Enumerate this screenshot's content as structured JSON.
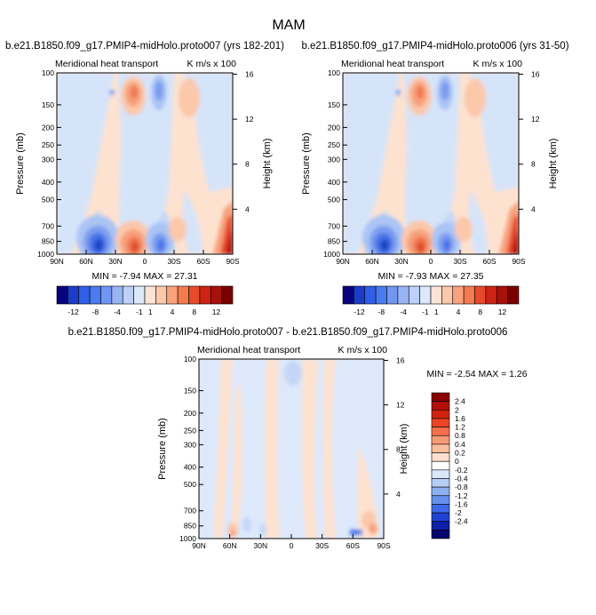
{
  "page": {
    "title": "MAM"
  },
  "panels": [
    {
      "title": "b.e21.B1850.f09_g17.PMIP4-midHolo.proto007 (yrs 182-201)",
      "left_label": "Meridional heat transport",
      "right_label": "K m/s x 100",
      "minmax": "MIN = -7.94   MAX = 27.31"
    },
    {
      "title": "b.e21.B1850.f09_g17.PMIP4-midHolo.proto006 (yrs 31-50)",
      "left_label": "Meridional heat transport",
      "right_label": "K m/s x 100",
      "minmax": "MIN = -7.93   MAX = 27.35"
    },
    {
      "title": "b.e21.B1850.f09_g17.PMIP4-midHolo.proto007 - b.e21.B1850.f09_g17.PMIP4-midHolo.proto006",
      "left_label": "Meridional heat transport",
      "right_label": "K m/s x 100",
      "minmax": "MIN =  -2.54  MAX =   1.26"
    }
  ],
  "colorbar_top": {
    "labels": [
      "-12",
      "-8",
      "-4",
      "-1",
      "1",
      "4",
      "8",
      "12"
    ],
    "colors": [
      "#08047b",
      "#1c3cc8",
      "#2f5fe6",
      "#4a7bf0",
      "#7196f2",
      "#98b4f4",
      "#bcd0f8",
      "#dde8fb",
      "#fbe4d5",
      "#fbc8aa",
      "#f9a37e",
      "#f47a50",
      "#e64a2a",
      "#cc2314",
      "#a8100a",
      "#7a0000"
    ]
  },
  "colorbar_bottom": {
    "labels": [
      "2.4",
      "2",
      "1.6",
      "1.2",
      "0.8",
      "0.4",
      "0.2",
      "0",
      "-0.2",
      "-0.4",
      "-0.8",
      "-1.2",
      "-1.6",
      "-2",
      "-2.4"
    ],
    "colors": [
      "#8a0000",
      "#b01008",
      "#d0240f",
      "#ea4424",
      "#f66f4a",
      "#f99a76",
      "#fbbf9e",
      "#fde0cf",
      "#ffffff",
      "#d9e6fb",
      "#b6cdf7",
      "#8eb0f3",
      "#6690ee",
      "#3e6ae8",
      "#2143d2",
      "#0e1fa8",
      "#06046e"
    ]
  },
  "chart_data": [
    {
      "type": "heatmap",
      "title": "b.e21.B1850.f09_g17.PMIP4-midHolo.proto007 (yrs 182-201)",
      "xlabel": "",
      "ylabel": "Pressure (mb)",
      "y2label": "Height (km)",
      "x_ticks": [
        "90N",
        "60N",
        "30N",
        "0",
        "30S",
        "60S",
        "90S"
      ],
      "y_ticks": [
        "100",
        "150",
        "200",
        "250",
        "300",
        "400",
        "500",
        "700",
        "850",
        "1000"
      ],
      "y2_ticks": [
        "16",
        "12",
        "8",
        "4"
      ],
      "min": -7.94,
      "max": 27.31
    },
    {
      "type": "heatmap",
      "title": "b.e21.B1850.f09_g17.PMIP4-midHolo.proto006 (yrs 31-50)",
      "xlabel": "",
      "ylabel": "Pressure (mb)",
      "y2label": "Height (km)",
      "x_ticks": [
        "90N",
        "60N",
        "30N",
        "0",
        "30S",
        "60S",
        "90S"
      ],
      "y_ticks": [
        "100",
        "150",
        "200",
        "250",
        "300",
        "400",
        "500",
        "700",
        "850",
        "1000"
      ],
      "y2_ticks": [
        "16",
        "12",
        "8",
        "4"
      ],
      "min": -7.93,
      "max": 27.35
    },
    {
      "type": "heatmap",
      "title": "b.e21.B1850.f09_g17.PMIP4-midHolo.proto007 - b.e21.B1850.f09_g17.PMIP4-midHolo.proto006",
      "xlabel": "",
      "ylabel": "Pressure (mb)",
      "y2label": "Height (km)",
      "x_ticks": [
        "90N",
        "60N",
        "30N",
        "0",
        "30S",
        "60S",
        "90S"
      ],
      "y_ticks": [
        "100",
        "150",
        "200",
        "250",
        "300",
        "400",
        "500",
        "700",
        "850",
        "1000"
      ],
      "y2_ticks": [
        "16",
        "12",
        "8",
        "4"
      ],
      "min": -2.54,
      "max": 1.26
    }
  ]
}
